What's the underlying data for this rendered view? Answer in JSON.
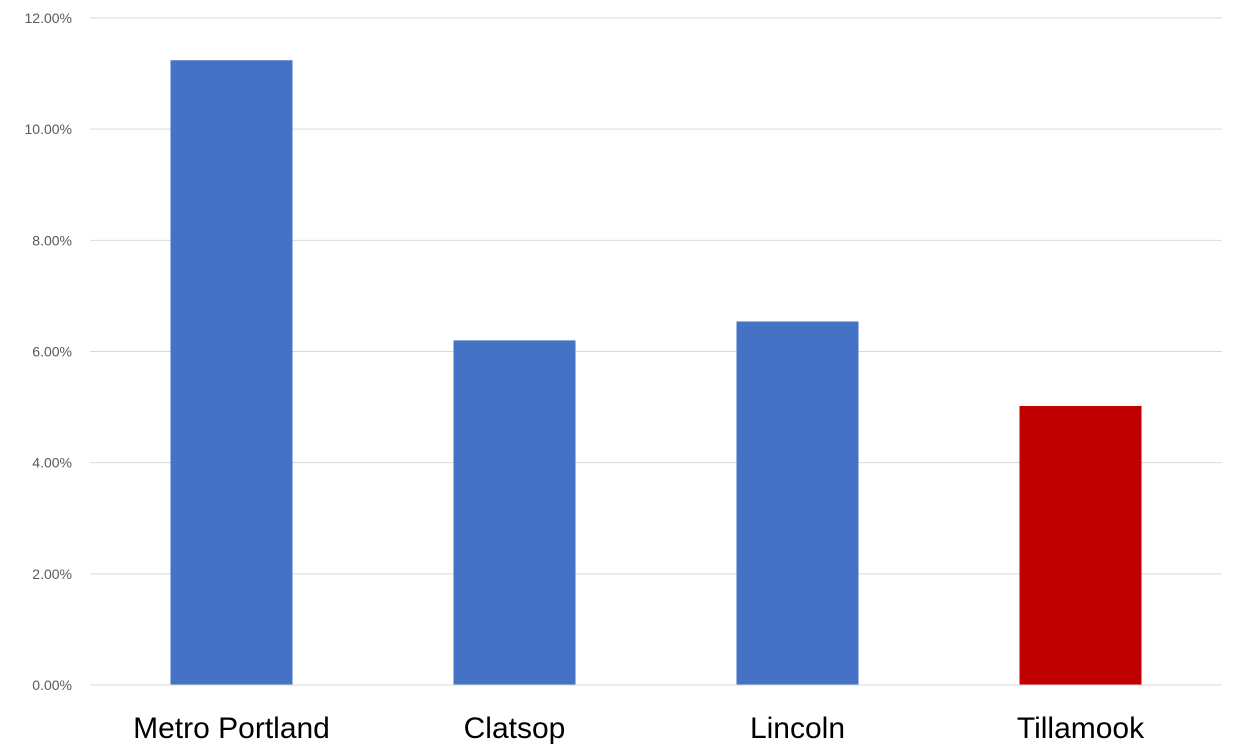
{
  "chart_data": {
    "type": "bar",
    "categories": [
      "Metro Portland",
      "Clatsop",
      "Lincoln",
      "Tillamook"
    ],
    "values": [
      0.1124,
      0.062,
      0.0654,
      0.0502
    ],
    "bar_colors": [
      "#4472C4",
      "#4472C4",
      "#4472C4",
      "#C00000"
    ],
    "y_ticks": [
      "0.00%",
      "2.00%",
      "4.00%",
      "6.00%",
      "8.00%",
      "10.00%",
      "12.00%"
    ],
    "ylim": [
      0,
      0.12
    ],
    "grid": true,
    "legend": false
  }
}
